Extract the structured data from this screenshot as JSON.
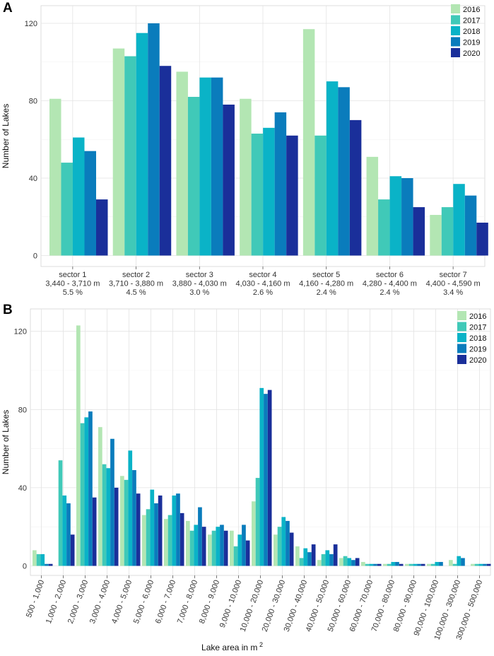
{
  "colors": {
    "2016": "#b3e6b3",
    "2017": "#40c9b8",
    "2018": "#0ab3c7",
    "2019": "#0a7cbc",
    "2020": "#1a2f9a"
  },
  "chart_data": [
    {
      "panel": "A",
      "type": "bar",
      "ylabel": "Number of Lakes",
      "xlabel": "",
      "ylim": [
        0,
        130
      ],
      "yticks": [
        0,
        40,
        80,
        120
      ],
      "legend_position": "top-right",
      "series_names": [
        "2016",
        "2017",
        "2018",
        "2019",
        "2020"
      ],
      "categories": [
        {
          "lines": [
            "sector 1",
            "3,440 - 3,710 m",
            "5.5 %"
          ]
        },
        {
          "lines": [
            "sector 2",
            "3,710 - 3,880 m",
            "4.5 %"
          ]
        },
        {
          "lines": [
            "sector 3",
            "3,880 - 4,030 m",
            "3.0 %"
          ]
        },
        {
          "lines": [
            "sector 4",
            "4,030 - 4,160 m",
            "2.6 %"
          ]
        },
        {
          "lines": [
            "sector 5",
            "4,160 - 4,280 m",
            "2.4 %"
          ]
        },
        {
          "lines": [
            "sector 6",
            "4,280 - 4,400 m",
            "2.4 %"
          ]
        },
        {
          "lines": [
            "sector 7",
            "4,400 - 4,590 m",
            "3.4 %"
          ]
        }
      ],
      "series": [
        {
          "name": "2016",
          "values": [
            81,
            107,
            95,
            81,
            117,
            51,
            21
          ]
        },
        {
          "name": "2017",
          "values": [
            48,
            103,
            82,
            63,
            62,
            29,
            25
          ]
        },
        {
          "name": "2018",
          "values": [
            61,
            115,
            92,
            66,
            90,
            41,
            37
          ]
        },
        {
          "name": "2019",
          "values": [
            54,
            120,
            92,
            74,
            87,
            40,
            31
          ]
        },
        {
          "name": "2020",
          "values": [
            29,
            98,
            78,
            62,
            70,
            25,
            17
          ]
        }
      ]
    },
    {
      "panel": "B",
      "type": "bar",
      "ylabel": "Number of Lakes",
      "xlabel": "Lake area in m",
      "xlabel_sup": "2",
      "ylim": [
        0,
        130
      ],
      "yticks": [
        0,
        40,
        80,
        120
      ],
      "legend_position": "top-right",
      "series_names": [
        "2016",
        "2017",
        "2018",
        "2019",
        "2020"
      ],
      "categories": [
        {
          "lines": [
            "500 - 1,000"
          ]
        },
        {
          "lines": [
            "1,000 - 2,000"
          ]
        },
        {
          "lines": [
            "2,000 - 3,000"
          ]
        },
        {
          "lines": [
            "3,000 - 4,000"
          ]
        },
        {
          "lines": [
            "4,000 - 5,000"
          ]
        },
        {
          "lines": [
            "5,000 - 6,000"
          ]
        },
        {
          "lines": [
            "6,000 - 7,000"
          ]
        },
        {
          "lines": [
            "7,000 - 8,000"
          ]
        },
        {
          "lines": [
            "8,000 - 9,000"
          ]
        },
        {
          "lines": [
            "9,000 - 10,000"
          ]
        },
        {
          "lines": [
            "10,000 - 20,000"
          ]
        },
        {
          "lines": [
            "20,000 - 30,000"
          ]
        },
        {
          "lines": [
            "30,000 - 40,000"
          ]
        },
        {
          "lines": [
            "40,000 - 50,000"
          ]
        },
        {
          "lines": [
            "50,000 - 60,000"
          ]
        },
        {
          "lines": [
            "60,000 - 70,000"
          ]
        },
        {
          "lines": [
            "70,000 - 80,000"
          ]
        },
        {
          "lines": [
            "80,000 - 90,000"
          ]
        },
        {
          "lines": [
            "90,000 - 100,000"
          ]
        },
        {
          "lines": [
            "100,000 - 300,000"
          ]
        },
        {
          "lines": [
            "300,000 - 500,000"
          ]
        }
      ],
      "series": [
        {
          "name": "2016",
          "values": [
            8,
            0,
            123,
            71,
            46,
            26,
            24,
            23,
            16,
            18,
            33,
            16,
            10,
            3,
            4,
            2,
            1,
            1,
            1,
            3,
            1
          ]
        },
        {
          "name": "2017",
          "values": [
            6,
            54,
            73,
            52,
            44,
            29,
            26,
            18,
            18,
            10,
            45,
            20,
            4,
            6,
            5,
            1,
            1,
            1,
            1,
            1,
            1
          ]
        },
        {
          "name": "2018",
          "values": [
            6,
            36,
            76,
            50,
            59,
            39,
            36,
            21,
            20,
            16,
            91,
            25,
            9,
            8,
            4,
            1,
            2,
            1,
            2,
            5,
            1
          ]
        },
        {
          "name": "2019",
          "values": [
            1,
            32,
            79,
            65,
            49,
            32,
            37,
            30,
            21,
            21,
            88,
            23,
            7,
            6,
            3,
            1,
            2,
            1,
            2,
            4,
            1
          ]
        },
        {
          "name": "2020",
          "values": [
            1,
            16,
            35,
            40,
            37,
            36,
            27,
            20,
            18,
            13,
            90,
            17,
            11,
            11,
            4,
            1,
            1,
            1,
            0,
            0,
            1
          ]
        }
      ]
    }
  ]
}
